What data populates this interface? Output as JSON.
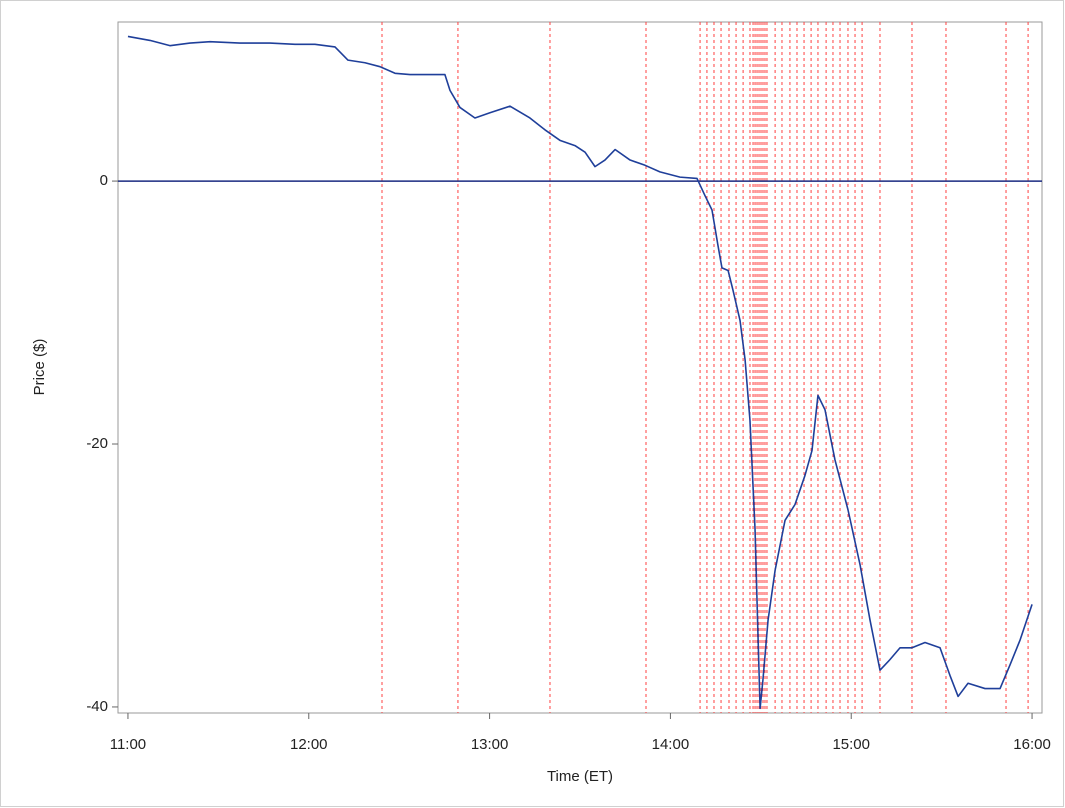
{
  "chart_data": {
    "type": "line",
    "x_label": "Time (ET)",
    "y_label": "Price ($)",
    "xlim": [
      10.945,
      16.055
    ],
    "ylim": [
      -40.46,
      12.1
    ],
    "xticks": [
      {
        "value": 11,
        "label": "11:00"
      },
      {
        "value": 12,
        "label": "12:00"
      },
      {
        "value": 13,
        "label": "13:00"
      },
      {
        "value": 14,
        "label": "14:00"
      },
      {
        "value": 15,
        "label": "15:00"
      },
      {
        "value": 16,
        "label": "16:00"
      }
    ],
    "yticks": [
      -40,
      -20,
      0
    ],
    "reference_line": {
      "value": 0,
      "color": "#1a2a80"
    },
    "event_lines": {
      "color": "#ff4040",
      "x": [
        12.405,
        12.825,
        13.334,
        13.865,
        14.164,
        14.202,
        14.241,
        14.28,
        14.324,
        14.363,
        14.402,
        14.44,
        14.457,
        14.468,
        14.479,
        14.49,
        14.501,
        14.512,
        14.523,
        14.534,
        14.579,
        14.617,
        14.661,
        14.7,
        14.739,
        14.778,
        14.816,
        14.861,
        14.899,
        14.938,
        14.982,
        15.021,
        15.06,
        15.159,
        15.336,
        15.524,
        15.856,
        15.978
      ]
    },
    "series": [
      {
        "color": "#1f3f9a",
        "x": [
          11.0,
          11.122,
          11.232,
          11.343,
          11.454,
          11.619,
          11.785,
          11.924,
          12.034,
          12.145,
          12.217,
          12.311,
          12.394,
          12.477,
          12.56,
          12.643,
          12.753,
          12.781,
          12.836,
          12.919,
          13.002,
          13.113,
          13.223,
          13.306,
          13.389,
          13.472,
          13.528,
          13.583,
          13.638,
          13.694,
          13.777,
          13.86,
          13.942,
          14.053,
          14.147,
          14.191,
          14.23,
          14.263,
          14.285,
          14.319,
          14.346,
          14.385,
          14.413,
          14.44,
          14.468,
          14.485,
          14.496,
          14.512,
          14.54,
          14.579,
          14.634,
          14.689,
          14.744,
          14.783,
          14.816,
          14.855,
          14.91,
          14.982,
          15.049,
          15.104,
          15.159,
          15.214,
          15.27,
          15.336,
          15.408,
          15.491,
          15.546,
          15.591,
          15.646,
          15.74,
          15.823,
          15.878,
          15.934,
          16.0
        ],
        "values": [
          11.0,
          10.7,
          10.3,
          10.5,
          10.6,
          10.5,
          10.5,
          10.4,
          10.4,
          10.2,
          9.2,
          9.0,
          8.7,
          8.2,
          8.1,
          8.1,
          8.1,
          6.9,
          5.6,
          4.8,
          5.2,
          5.7,
          4.8,
          3.9,
          3.1,
          2.7,
          2.2,
          1.1,
          1.6,
          2.4,
          1.6,
          1.2,
          0.7,
          0.3,
          0.2,
          -1.1,
          -2.2,
          -4.9,
          -6.6,
          -6.8,
          -8.3,
          -10.6,
          -13.6,
          -18.2,
          -26.5,
          -34.9,
          -40.1,
          -37.9,
          -33.4,
          -29.6,
          -25.8,
          -24.6,
          -22.4,
          -20.5,
          -16.3,
          -17.4,
          -21.2,
          -25.0,
          -29.2,
          -33.4,
          -37.2,
          -36.4,
          -35.5,
          -35.5,
          -35.1,
          -35.5,
          -37.6,
          -39.2,
          -38.2,
          -38.6,
          -38.6,
          -36.8,
          -34.9,
          -32.2
        ]
      }
    ]
  }
}
